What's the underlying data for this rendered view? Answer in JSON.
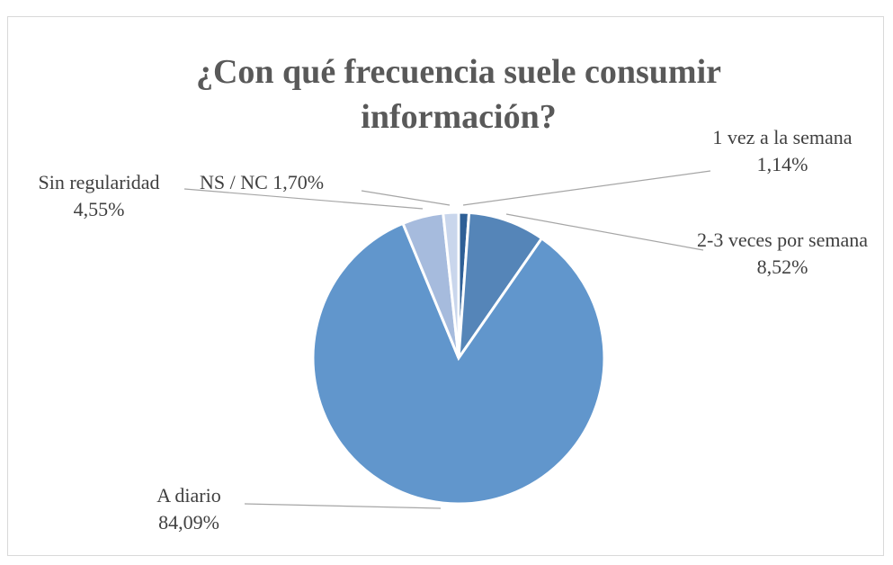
{
  "chart_data": {
    "type": "pie",
    "title": "¿Con qué frecuencia suele consumir información?",
    "categories": [
      "1 vez a la semana",
      "2-3 veces por semana",
      "A diario",
      "Sin regularidad",
      "NS / NC"
    ],
    "values": [
      1.14,
      8.52,
      84.09,
      4.55,
      1.7
    ],
    "value_labels": [
      "1,14%",
      "8,52%",
      "84,09%",
      "4,55%",
      "1,70%"
    ],
    "colors": [
      "#2e5f96",
      "#5585b8",
      "#6196cc",
      "#a6bbdd",
      "#c9d6ec"
    ]
  }
}
